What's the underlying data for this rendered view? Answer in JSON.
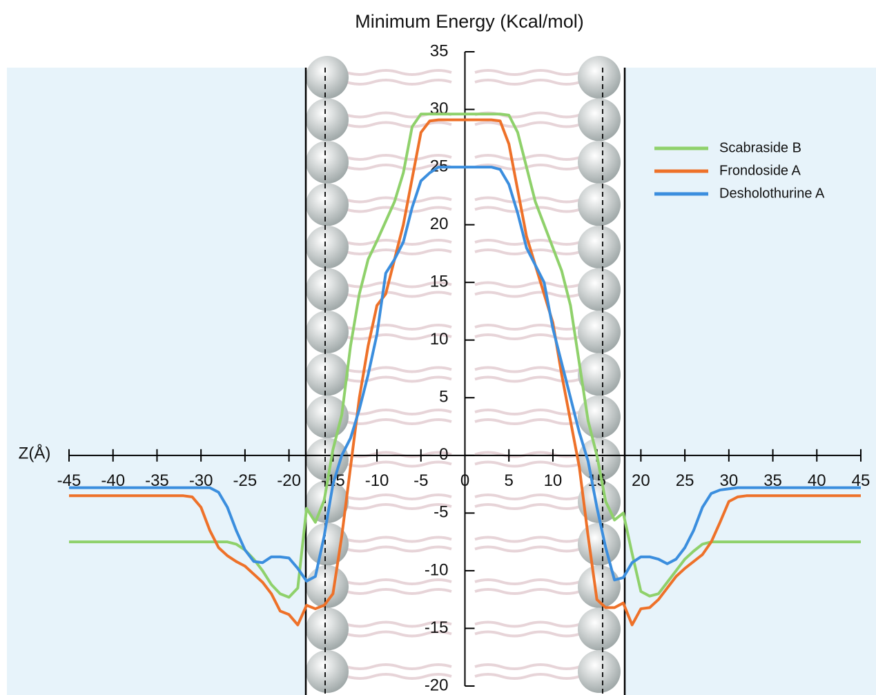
{
  "chart_data": {
    "type": "line",
    "title": "Minimum Energy (Kcal/mol)",
    "x_label": "Z(Å)",
    "x": [
      -45,
      -40,
      -35,
      -32,
      -31,
      -30,
      -29,
      -28,
      -27,
      -26,
      -25,
      -24,
      -23,
      -22,
      -21,
      -20,
      -19,
      -18,
      -17,
      -16,
      -15,
      -14,
      -13,
      -12,
      -11,
      -10,
      -9,
      -8,
      -7,
      -6,
      -5,
      -4,
      -3,
      -2,
      -1,
      0,
      1,
      2,
      3,
      4,
      5,
      6,
      7,
      8,
      9,
      10,
      11,
      12,
      13,
      14,
      15,
      16,
      17,
      18,
      19,
      20,
      21,
      22,
      23,
      24,
      25,
      26,
      27,
      28,
      29,
      30,
      31,
      32,
      35,
      40,
      45
    ],
    "series": [
      {
        "name": "Scabraside B",
        "color": "#8fd16b",
        "values": [
          -7.5,
          -7.5,
          -7.5,
          -7.5,
          -7.5,
          -7.5,
          -7.5,
          -7.5,
          -7.5,
          -7.7,
          -8.2,
          -9,
          -10,
          -11.2,
          -12,
          -12.3,
          -11.5,
          -4.6,
          -5.8,
          -3.9,
          0.5,
          3.5,
          9.5,
          14,
          17,
          18.6,
          20.3,
          22,
          24.5,
          28.5,
          29.6,
          29.6,
          29.6,
          29.6,
          29.6,
          29.6,
          29.6,
          29.6,
          29.6,
          29.6,
          29.5,
          28,
          25,
          22,
          20,
          18,
          16,
          13,
          8,
          3,
          0,
          -4,
          -5.6,
          -5,
          -8.5,
          -11.8,
          -12.2,
          -12,
          -11,
          -10,
          -9,
          -8.3,
          -7.7,
          -7.5,
          -7.5,
          -7.5,
          -7.5,
          -7.5,
          -7.5,
          -7.5,
          -7.5
        ]
      },
      {
        "name": "Frondoside A",
        "color": "#ee7129",
        "values": [
          -3.5,
          -3.5,
          -3.5,
          -3.5,
          -3.6,
          -4.5,
          -6.5,
          -8,
          -8.7,
          -9.2,
          -9.6,
          -10.3,
          -11,
          -12,
          -13.5,
          -13.8,
          -14.7,
          -13,
          -13.3,
          -13,
          -12,
          -7,
          -1,
          5,
          9.5,
          13,
          14,
          17,
          20,
          24,
          28,
          29,
          29.1,
          29.1,
          29.1,
          29.1,
          29.1,
          29.1,
          29.1,
          29,
          27,
          23,
          19,
          16.5,
          14,
          11.5,
          7,
          3,
          -1,
          -7,
          -12.5,
          -13.2,
          -13.2,
          -12.8,
          -14.7,
          -13.3,
          -13.2,
          -12.5,
          -11.5,
          -10.5,
          -9.8,
          -9.2,
          -8.6,
          -7.5,
          -5.8,
          -4,
          -3.6,
          -3.5,
          -3.5,
          -3.5,
          -3.5
        ]
      },
      {
        "name": "Desholothurine A",
        "color": "#3b8ede",
        "values": [
          -2.8,
          -2.8,
          -2.8,
          -2.8,
          -2.8,
          -2.8,
          -2.8,
          -3.2,
          -4.5,
          -6.5,
          -8.2,
          -9.2,
          -9.3,
          -8.8,
          -8.8,
          -8.9,
          -9.8,
          -10.9,
          -10.5,
          -7,
          -2.5,
          0,
          1.5,
          4,
          7,
          10.5,
          15.8,
          17,
          18.5,
          21.5,
          23.8,
          24.5,
          25,
          25,
          25,
          25,
          25,
          25,
          25,
          24.8,
          23.5,
          21,
          18,
          16.5,
          15,
          11,
          8,
          5,
          2,
          -0.5,
          -4.5,
          -8,
          -10.8,
          -10.6,
          -9.3,
          -8.8,
          -8.8,
          -9,
          -9.4,
          -9,
          -8,
          -6.5,
          -4.5,
          -3.3,
          -3,
          -2.9,
          -2.8,
          -2.8,
          -2.8,
          -2.8,
          -2.8
        ]
      }
    ],
    "xlim": [
      -45,
      45
    ],
    "xticks": [
      -45,
      -40,
      -35,
      -30,
      -25,
      -20,
      -15,
      -10,
      -5,
      0,
      5,
      10,
      15,
      20,
      25,
      30,
      35,
      40,
      45
    ],
    "ylim": [
      -20,
      35
    ],
    "yticks": [
      -20,
      -15,
      -10,
      -5,
      0,
      5,
      10,
      15,
      20,
      25,
      30,
      35
    ],
    "legend": "upper right"
  }
}
